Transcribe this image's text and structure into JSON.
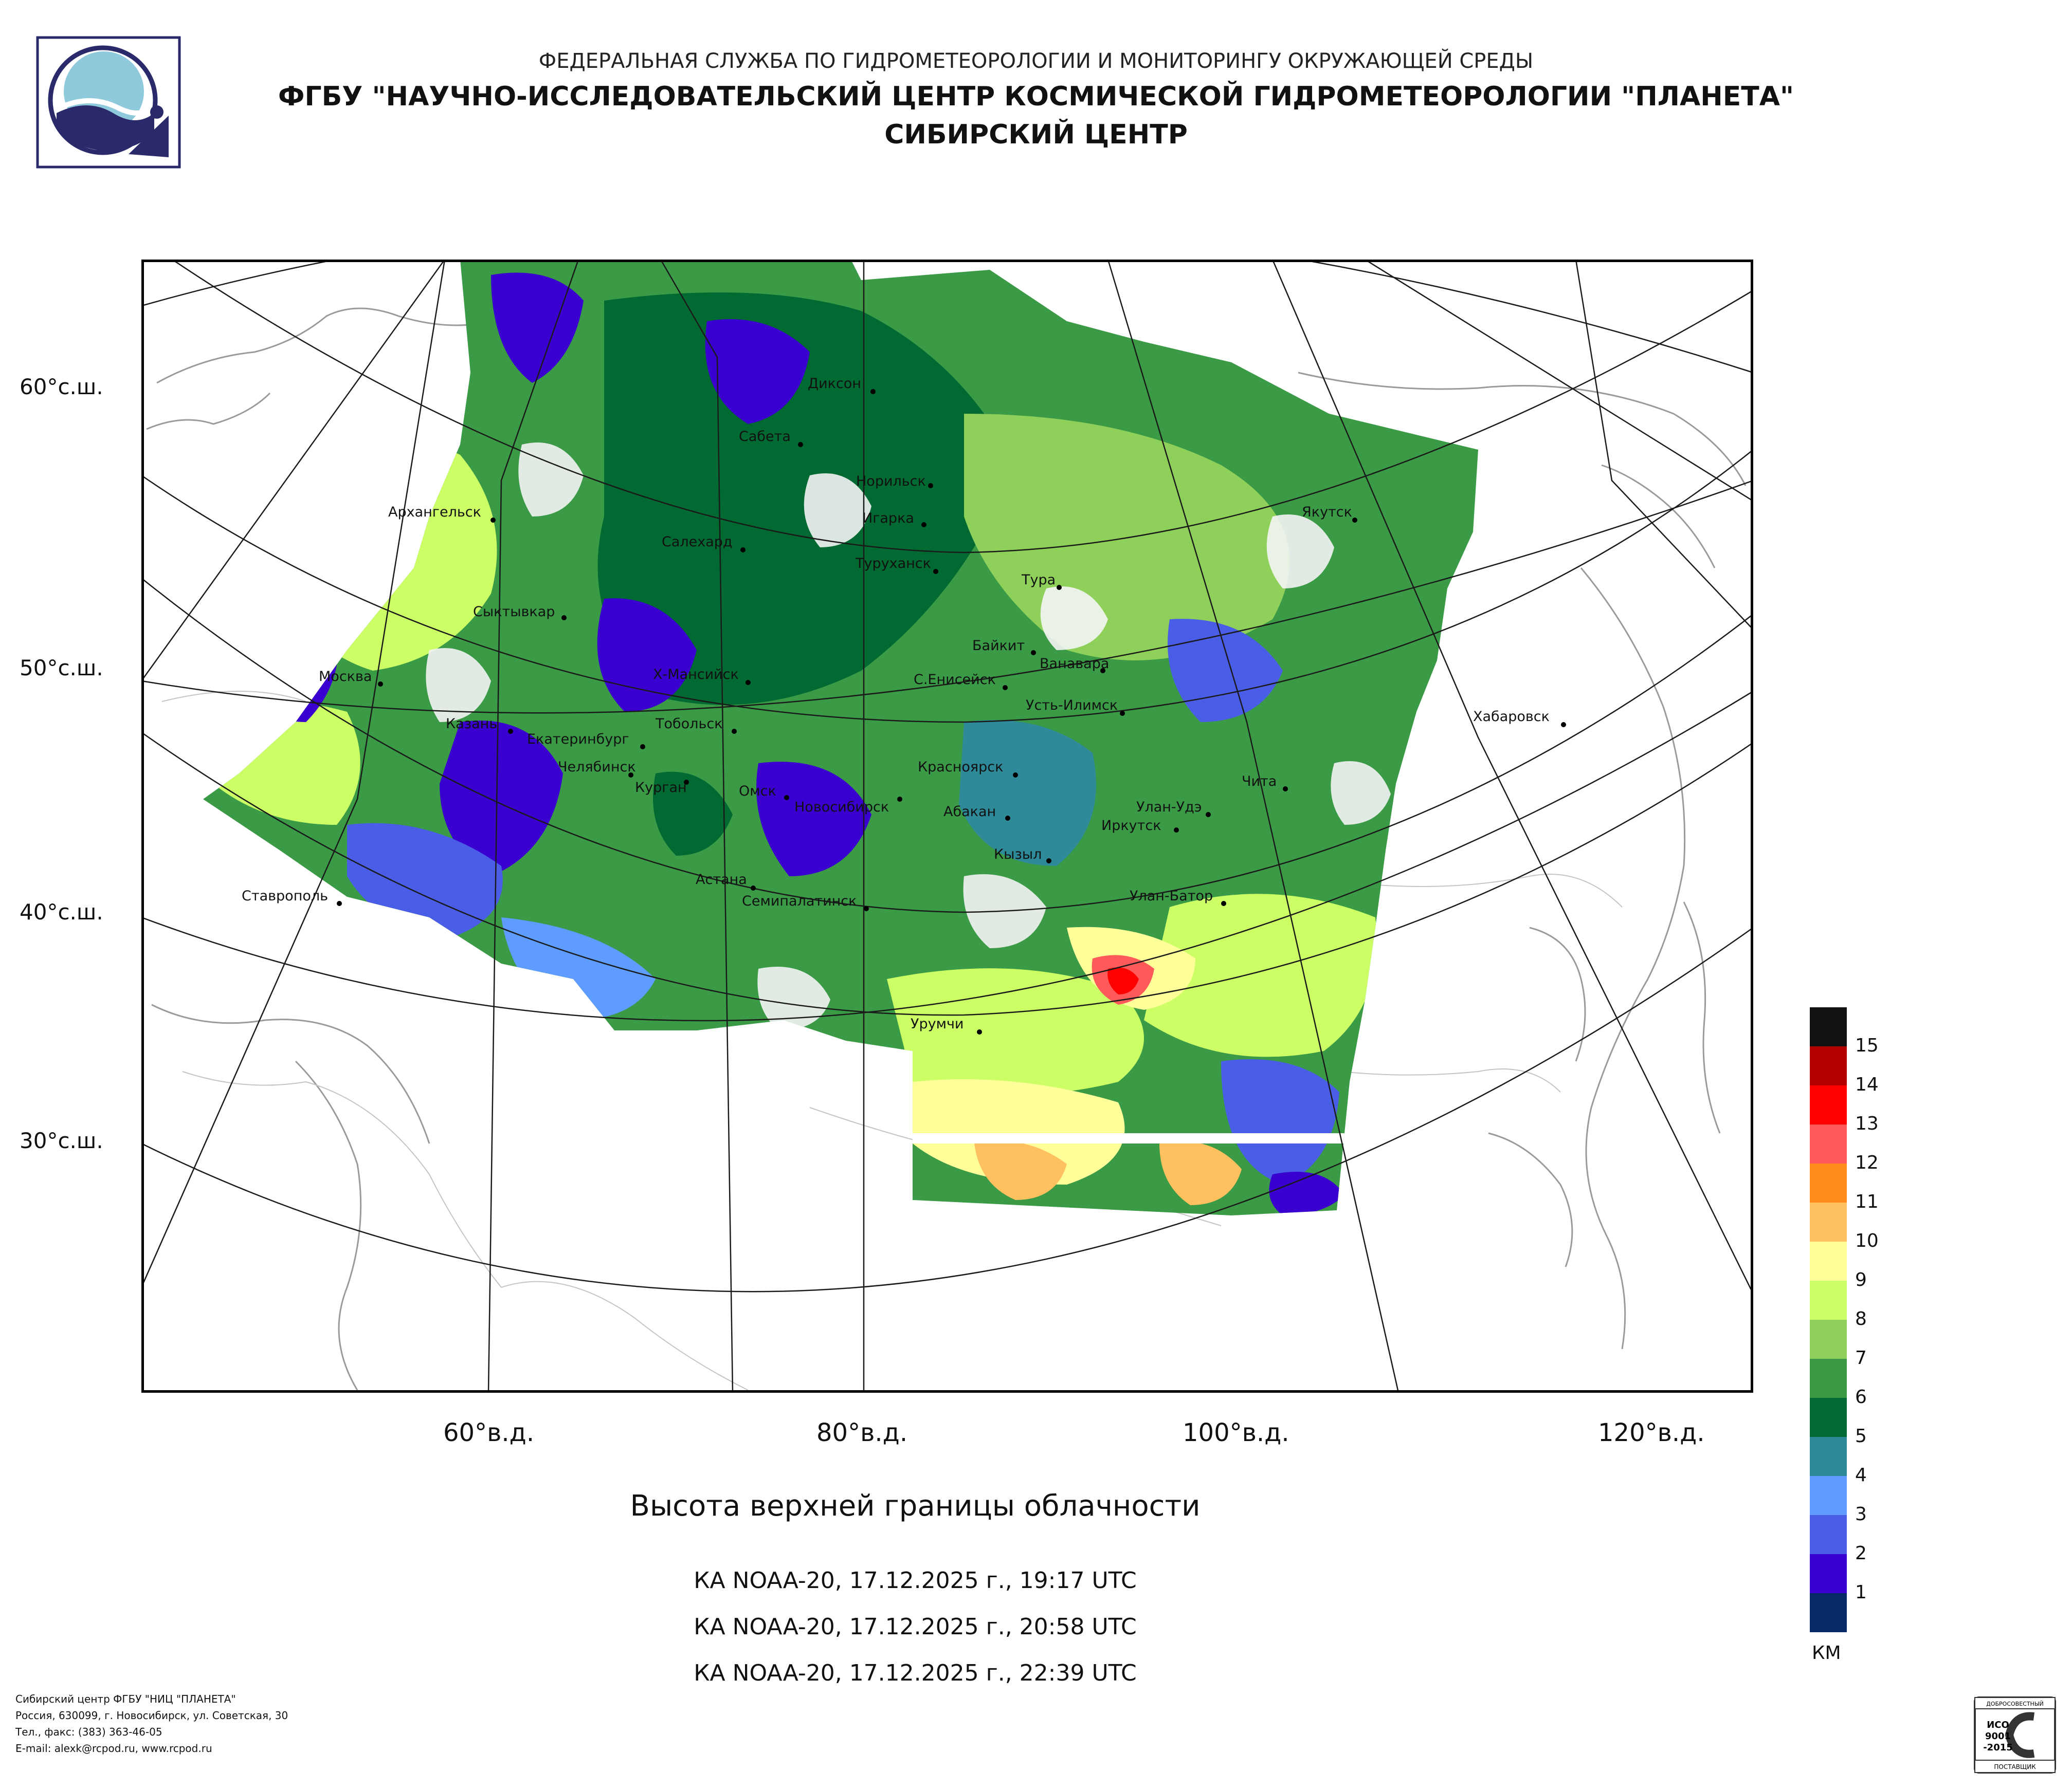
{
  "header": {
    "line1": "ФЕДЕРАЛЬНАЯ СЛУЖБА ПО ГИДРОМЕТЕОРОЛОГИИ И МОНИТОРИНГУ ОКРУЖАЮЩЕЙ СРЕДЫ",
    "line2": "ФГБУ \"НАУЧНО-ИССЛЕДОВАТЕЛЬСКИЙ ЦЕНТР КОСМИЧЕСКОЙ ГИДРОМЕТЕОРОЛОГИИ \"ПЛАНЕТА\"",
    "line3": "СИБИРСКИЙ ЦЕНТР"
  },
  "map": {
    "lat_labels": [
      "60°с.ш.",
      "50°с.ш.",
      "40°с.ш.",
      "30°с.ш."
    ],
    "lon_labels": [
      "60°в.д.",
      "80°в.д.",
      "100°в.д.",
      "120°в.д."
    ],
    "cities": [
      "Диксон",
      "Сабета",
      "Норильск",
      "Игарка",
      "Архангельск",
      "Салехард",
      "Туруханск",
      "Якутск",
      "Тура",
      "Сыктывкар",
      "Байкит",
      "Ванавара",
      "Москва",
      "Х-Мансийск",
      "С.Енисейск",
      "Усть-Илимск",
      "Хабаровск",
      "Казань",
      "Тобольск",
      "Екатеринбург",
      "Челябинск",
      "Красноярск",
      "Курган",
      "Чита",
      "Омск",
      "Новосибирск",
      "Улан-Удэ",
      "Абакан",
      "Иркутск",
      "Кызыл",
      "Астана",
      "Ставрополь",
      "Улан-Батор",
      "Семипалатинск",
      "Урумчи"
    ],
    "palette": {
      "ocean_bg": "#ffffff",
      "coast_line": "#9a9a9a",
      "grid_line": "#1a1a1a",
      "cloud_white": "#f4f4f4"
    }
  },
  "product": {
    "title": "Высота верхней границы облачности",
    "passes": [
      "КА NOAA-20, 17.12.2025 г., 19:17 UTC",
      "КА NOAA-20, 17.12.2025 г., 20:58 UTC",
      "КА NOAA-20, 17.12.2025 г., 22:39 UTC"
    ]
  },
  "legend": {
    "unit": "КМ",
    "levels": [
      "15",
      "14",
      "13",
      "12",
      "11",
      "10",
      "9",
      "8",
      "7",
      "6",
      "5",
      "4",
      "3",
      "2",
      "1"
    ],
    "colors": [
      "#111111",
      "#b50000",
      "#ff0000",
      "#ff5a5a",
      "#ff8c1a",
      "#ffc060",
      "#ffff99",
      "#ccff66",
      "#8fd05a",
      "#3a9a46",
      "#006a32",
      "#2e8a99",
      "#5e9cff",
      "#4a5de6",
      "#3a00d0",
      "#062a66"
    ]
  },
  "footer": {
    "line1": "Сибирский центр ФГБУ \"НИЦ \"ПЛАНЕТА\"",
    "line2": "Россия, 630099, г. Новосибирск, ул. Советская, 30",
    "line3": "Тел., факс: (383) 363-46-05",
    "line4": "E-mail: alexk@rcpod.ru, www.rcpod.ru"
  },
  "certificate": {
    "top": "ДОБРОСОВЕСТНЫЙ",
    "mid1": "ИСО",
    "mid2": "9001",
    "mid3": "-2015",
    "bottom": "ПОСТАВЩИК"
  }
}
